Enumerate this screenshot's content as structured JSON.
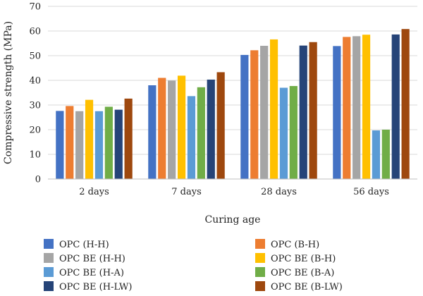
{
  "chart_data": {
    "type": "bar",
    "title": "",
    "xlabel": "Curing age",
    "ylabel": "Compressive strength (MPa)",
    "ylim": [
      0,
      70
    ],
    "yticks": [
      0,
      10,
      20,
      30,
      40,
      50,
      60,
      70
    ],
    "categories": [
      "2 days",
      "7 days",
      "28 days",
      "56 days"
    ],
    "grid": true,
    "legend_position": "bottom",
    "series": [
      {
        "name": "OPC (H-H)",
        "color": "#4472C4",
        "values": [
          27.6,
          38.0,
          50.3,
          53.9
        ]
      },
      {
        "name": "OPC (B-H)",
        "color": "#ED7D31",
        "values": [
          29.6,
          41.0,
          52.2,
          57.6
        ]
      },
      {
        "name": "OPC BE (H-H)",
        "color": "#A5A5A5",
        "values": [
          27.5,
          39.9,
          54.0,
          57.9
        ]
      },
      {
        "name": "OPC BE (B-H)",
        "color": "#FFC000",
        "values": [
          32.1,
          41.9,
          56.6,
          58.5
        ]
      },
      {
        "name": "OPC BE (H-A)",
        "color": "#5B9BD5",
        "values": [
          27.5,
          33.6,
          37.0,
          19.7
        ]
      },
      {
        "name": "OPC BE (B-A)",
        "color": "#70AD47",
        "values": [
          29.3,
          37.2,
          37.7,
          20.0
        ]
      },
      {
        "name": "OPC BE (H-LW)",
        "color": "#264478",
        "values": [
          28.1,
          40.3,
          54.1,
          58.6
        ]
      },
      {
        "name": "OPC BE (B-LW)",
        "color": "#9E480E",
        "values": [
          32.6,
          43.3,
          55.5,
          60.8
        ]
      }
    ],
    "legend_order": [
      0,
      2,
      4,
      6,
      1,
      3,
      5,
      7
    ]
  }
}
